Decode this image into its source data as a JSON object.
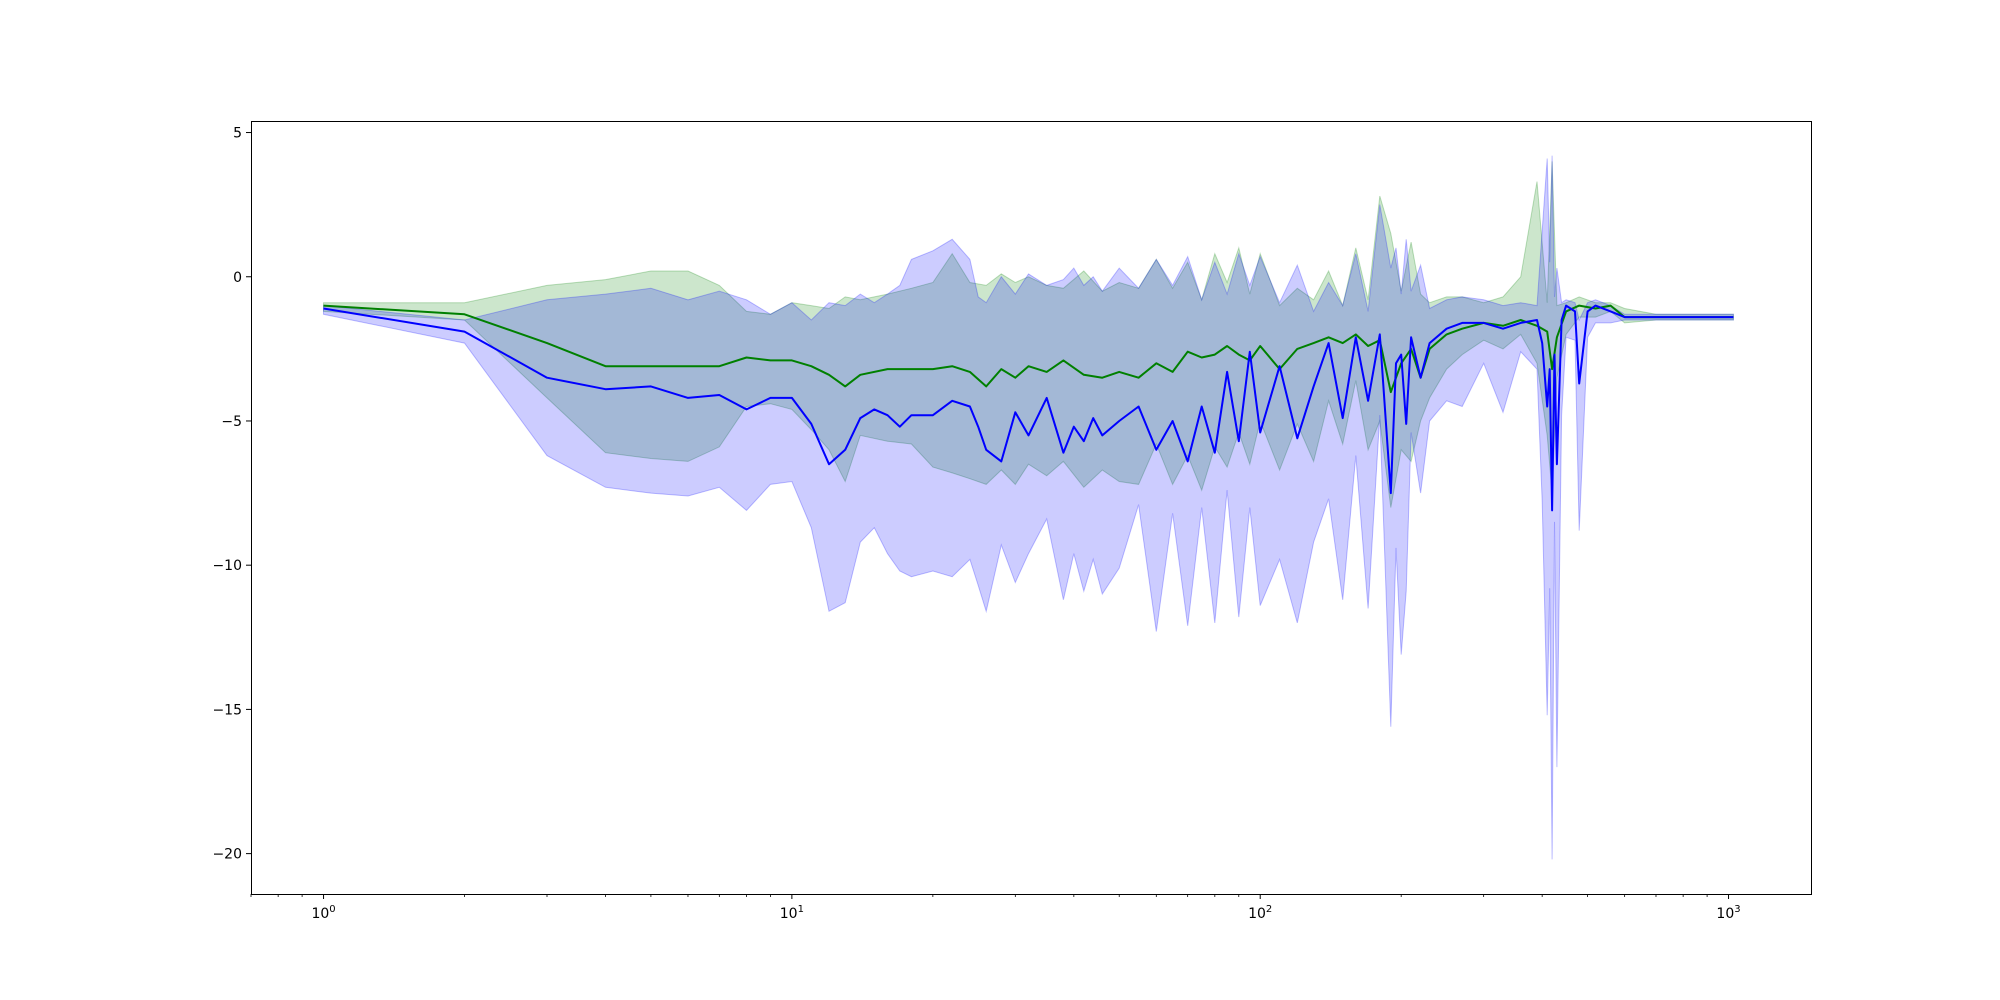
{
  "chart_data": {
    "type": "line",
    "xscale": "log",
    "xlim": [
      0.7,
      1500
    ],
    "ylim": [
      -21.4,
      5.4
    ],
    "grid": false,
    "title": "",
    "xlabel": "",
    "ylabel": "",
    "x_ticks": [
      {
        "base": "10",
        "exp": "0",
        "value": 1
      },
      {
        "base": "10",
        "exp": "1",
        "value": 10
      },
      {
        "base": "10",
        "exp": "2",
        "value": 100
      },
      {
        "base": "10",
        "exp": "3",
        "value": 1000
      }
    ],
    "y_ticks": [
      {
        "label": "5",
        "value": 5
      },
      {
        "label": "0",
        "value": 0
      },
      {
        "label": "−5",
        "value": -5
      },
      {
        "label": "−10",
        "value": -10
      },
      {
        "label": "−15",
        "value": -15
      },
      {
        "label": "−20",
        "value": -20
      }
    ],
    "series": [
      {
        "color": "#008000",
        "band_color": "#008000",
        "band_opacity": 0.2,
        "x": [
          1,
          2,
          3,
          4,
          5,
          6,
          7,
          8,
          9,
          10,
          11,
          12,
          13,
          14,
          16,
          18,
          20,
          22,
          24,
          26,
          28,
          30,
          32,
          35,
          38,
          42,
          46,
          50,
          55,
          60,
          65,
          70,
          75,
          80,
          85,
          90,
          95,
          100,
          110,
          120,
          130,
          140,
          150,
          160,
          170,
          180,
          190,
          200,
          210,
          220,
          230,
          250,
          270,
          300,
          330,
          360,
          390,
          410,
          420,
          430,
          450,
          480,
          520,
          560,
          600,
          700,
          800,
          900,
          1024
        ],
        "y": [
          -1.0,
          -1.3,
          -2.3,
          -3.1,
          -3.1,
          -3.1,
          -3.1,
          -2.8,
          -2.9,
          -2.9,
          -3.1,
          -3.4,
          -3.8,
          -3.4,
          -3.2,
          -3.2,
          -3.2,
          -3.1,
          -3.3,
          -3.8,
          -3.2,
          -3.5,
          -3.1,
          -3.3,
          -2.9,
          -3.4,
          -3.5,
          -3.3,
          -3.5,
          -3.0,
          -3.3,
          -2.6,
          -2.8,
          -2.7,
          -2.4,
          -2.7,
          -2.9,
          -2.4,
          -3.2,
          -2.5,
          -2.3,
          -2.1,
          -2.3,
          -2.0,
          -2.4,
          -2.2,
          -4.0,
          -3.0,
          -2.5,
          -3.5,
          -2.5,
          -2.0,
          -1.8,
          -1.6,
          -1.7,
          -1.5,
          -1.7,
          -1.9,
          -3.2,
          -2.1,
          -1.2,
          -1.0,
          -1.1,
          -1.0,
          -1.4,
          -1.4,
          -1.4,
          -1.4,
          -1.4
        ],
        "upper": [
          -0.9,
          -0.9,
          -0.3,
          -0.1,
          0.2,
          0.2,
          -0.3,
          -1.2,
          -1.3,
          -0.9,
          -1.0,
          -1.1,
          -0.7,
          -0.8,
          -0.6,
          -0.4,
          -0.2,
          0.8,
          -0.2,
          -0.3,
          0.1,
          -0.2,
          0.0,
          -0.3,
          -0.4,
          0.2,
          -0.5,
          -0.2,
          -0.4,
          0.6,
          -0.4,
          0.5,
          -0.8,
          0.8,
          -0.2,
          1.0,
          -0.6,
          0.8,
          -1.0,
          -0.4,
          -0.8,
          0.2,
          -1.0,
          1.0,
          -0.8,
          2.8,
          1.5,
          -0.5,
          1.2,
          -0.6,
          -0.9,
          -0.7,
          -0.7,
          -0.9,
          -0.7,
          0.0,
          3.3,
          -0.9,
          4.0,
          -1.0,
          -0.9,
          -0.7,
          -0.9,
          -0.9,
          -1.1,
          -1.3,
          -1.3,
          -1.3,
          -1.3
        ],
        "lower": [
          -1.2,
          -1.5,
          -4.2,
          -6.1,
          -6.3,
          -6.4,
          -5.9,
          -4.5,
          -4.4,
          -4.6,
          -5.3,
          -6.0,
          -7.1,
          -5.5,
          -5.7,
          -5.8,
          -6.6,
          -6.8,
          -7.0,
          -7.2,
          -6.7,
          -7.2,
          -6.5,
          -6.9,
          -6.4,
          -7.3,
          -6.7,
          -7.1,
          -7.2,
          -5.8,
          -7.2,
          -6.2,
          -7.4,
          -5.9,
          -6.6,
          -5.4,
          -6.5,
          -5.0,
          -6.7,
          -5.1,
          -6.4,
          -4.3,
          -5.8,
          -3.6,
          -6.0,
          -5.0,
          -8.0,
          -6.0,
          -6.4,
          -5.0,
          -4.2,
          -3.2,
          -2.7,
          -2.2,
          -2.5,
          -2.0,
          -3.0,
          -5.5,
          -7.5,
          -3.5,
          -2.0,
          -1.4,
          -1.4,
          -1.2,
          -1.6,
          -1.5,
          -1.5,
          -1.5,
          -1.5
        ]
      },
      {
        "color": "#0000ff",
        "band_color": "#0000ff",
        "band_opacity": 0.2,
        "x": [
          1,
          2,
          3,
          4,
          5,
          6,
          7,
          8,
          9,
          10,
          11,
          12,
          13,
          14,
          15,
          16,
          17,
          18,
          20,
          22,
          24,
          25,
          26,
          28,
          30,
          32,
          35,
          38,
          40,
          42,
          44,
          46,
          50,
          55,
          60,
          65,
          70,
          75,
          80,
          85,
          90,
          95,
          100,
          110,
          120,
          130,
          140,
          150,
          160,
          170,
          180,
          190,
          195,
          200,
          205,
          210,
          220,
          230,
          250,
          270,
          300,
          330,
          360,
          390,
          400,
          410,
          415,
          420,
          425,
          430,
          440,
          450,
          470,
          480,
          500,
          520,
          560,
          600,
          700,
          800,
          900,
          1024
        ],
        "y": [
          -1.1,
          -1.9,
          -3.5,
          -3.9,
          -3.8,
          -4.2,
          -4.1,
          -4.6,
          -4.2,
          -4.2,
          -5.1,
          -6.5,
          -6.0,
          -4.9,
          -4.6,
          -4.8,
          -5.2,
          -4.8,
          -4.8,
          -4.3,
          -4.5,
          -5.2,
          -6.0,
          -6.4,
          -4.7,
          -5.5,
          -4.2,
          -6.1,
          -5.2,
          -5.7,
          -4.9,
          -5.5,
          -5.0,
          -4.5,
          -6.0,
          -5.0,
          -6.4,
          -4.5,
          -6.1,
          -3.3,
          -5.7,
          -2.6,
          -5.4,
          -3.1,
          -5.6,
          -3.8,
          -2.3,
          -4.9,
          -2.1,
          -4.3,
          -2.0,
          -7.5,
          -3.0,
          -2.7,
          -5.1,
          -2.1,
          -3.5,
          -2.3,
          -1.8,
          -1.6,
          -1.6,
          -1.8,
          -1.6,
          -1.5,
          -2.3,
          -4.5,
          -3.2,
          -8.1,
          -2.7,
          -6.5,
          -1.5,
          -1.0,
          -1.2,
          -3.7,
          -1.2,
          -1.0,
          -1.2,
          -1.4,
          -1.4,
          -1.4,
          -1.4,
          -1.4
        ],
        "upper": [
          -1.0,
          -1.5,
          -0.8,
          -0.6,
          -0.4,
          -0.8,
          -0.5,
          -0.8,
          -1.3,
          -0.9,
          -1.5,
          -0.9,
          -1.0,
          -0.6,
          -0.9,
          -0.6,
          -0.3,
          0.6,
          0.9,
          1.3,
          0.6,
          -0.7,
          -0.9,
          0.0,
          -0.6,
          0.1,
          -0.3,
          -0.1,
          0.3,
          -0.3,
          0.0,
          -0.5,
          0.3,
          -0.4,
          0.6,
          -0.3,
          0.7,
          -0.8,
          0.5,
          -0.6,
          0.8,
          -0.3,
          0.7,
          -0.9,
          0.4,
          -1.2,
          -0.2,
          -1.0,
          0.8,
          -1.2,
          2.5,
          0.3,
          1.0,
          -0.6,
          1.3,
          -0.5,
          0.4,
          -1.1,
          -0.8,
          -0.7,
          -0.8,
          -1.0,
          -0.9,
          -1.0,
          1.6,
          4.1,
          0.5,
          4.2,
          -0.7,
          0.3,
          -0.9,
          -0.8,
          -0.9,
          -1.5,
          -0.9,
          -0.8,
          -1.0,
          -1.3,
          -1.3,
          -1.3,
          -1.3,
          -1.3
        ],
        "lower": [
          -1.3,
          -2.3,
          -6.2,
          -7.3,
          -7.5,
          -7.6,
          -7.3,
          -8.1,
          -7.2,
          -7.1,
          -8.7,
          -11.6,
          -11.3,
          -9.2,
          -8.7,
          -9.6,
          -10.2,
          -10.4,
          -10.2,
          -10.4,
          -9.8,
          -10.7,
          -11.6,
          -9.3,
          -10.6,
          -9.6,
          -8.4,
          -11.2,
          -9.6,
          -10.9,
          -9.8,
          -11.0,
          -10.1,
          -7.9,
          -12.3,
          -8.2,
          -12.1,
          -8.0,
          -12.0,
          -7.4,
          -11.8,
          -8.0,
          -11.4,
          -9.8,
          -12.0,
          -9.2,
          -7.7,
          -11.2,
          -6.2,
          -11.5,
          -4.8,
          -15.6,
          -9.4,
          -13.1,
          -10.9,
          -5.4,
          -7.5,
          -5.0,
          -4.3,
          -4.5,
          -3.0,
          -4.7,
          -2.6,
          -3.2,
          -7.8,
          -15.2,
          -10.8,
          -20.2,
          -8.5,
          -17.0,
          -4.8,
          -2.1,
          -2.2,
          -8.8,
          -2.1,
          -1.6,
          -1.6,
          -1.5,
          -1.5,
          -1.5,
          -1.5,
          -1.5
        ]
      }
    ]
  }
}
